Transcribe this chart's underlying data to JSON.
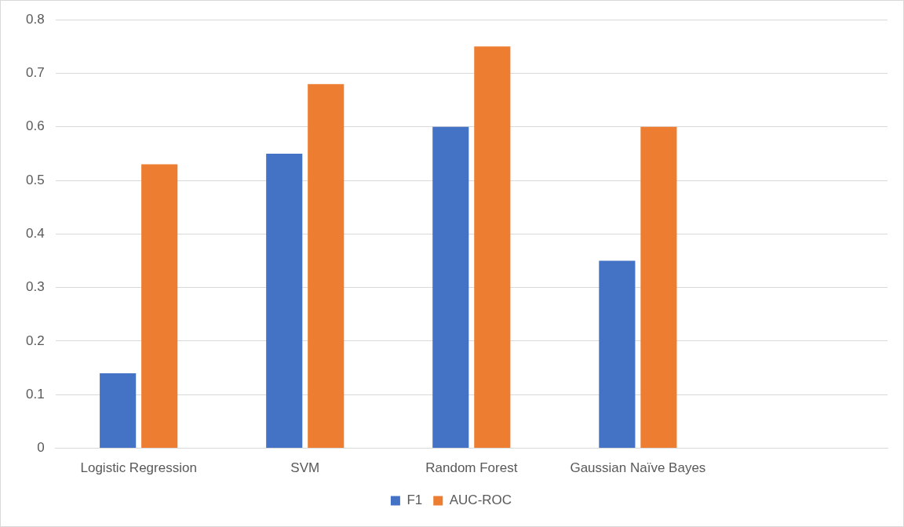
{
  "chart_data": {
    "type": "bar",
    "categories": [
      "Logistic Regression",
      "SVM",
      "Random Forest",
      "Gaussian Naïve Bayes",
      null
    ],
    "series": [
      {
        "name": "F1",
        "color": "#4472c4",
        "values": [
          0.14,
          0.55,
          0.6,
          0.35,
          null
        ]
      },
      {
        "name": "AUC-ROC",
        "color": "#ed7d31",
        "values": [
          0.53,
          0.68,
          0.75,
          0.6,
          null
        ]
      }
    ],
    "ylim": [
      0,
      0.8
    ],
    "yticks": [
      0,
      0.1,
      0.2,
      0.3,
      0.4,
      0.5,
      0.6,
      0.7,
      0.8
    ],
    "grid": "y",
    "legend": "bottom"
  }
}
